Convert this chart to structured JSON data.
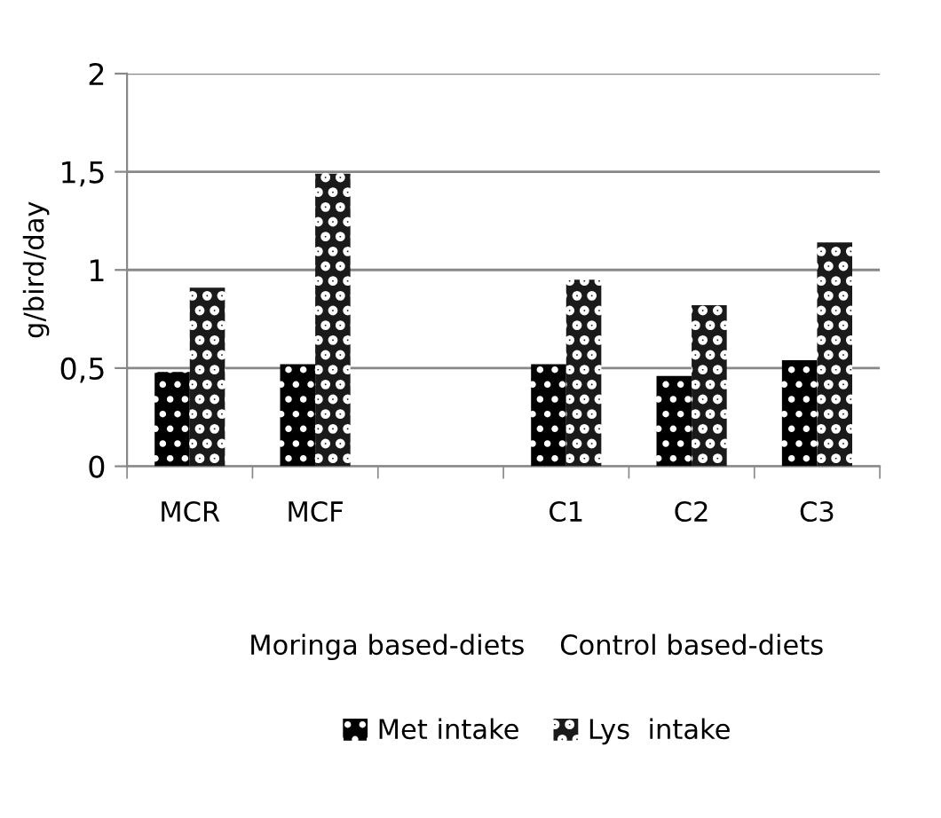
{
  "chart_data": {
    "type": "bar",
    "ylabel": "g/bird/day",
    "xlabel": "Moringa based-diets    Control based-diets",
    "categories": [
      "MCR",
      "MCF",
      null,
      "C1",
      "C2",
      "C3"
    ],
    "series": [
      {
        "name": "Met intake",
        "color": "#000000",
        "values": [
          0.48,
          0.52,
          null,
          0.52,
          0.46,
          0.54
        ]
      },
      {
        "name": "Lys  intake",
        "color": "#1a1a1a",
        "values": [
          0.91,
          1.49,
          null,
          0.95,
          0.82,
          1.14
        ]
      }
    ],
    "ylim": [
      0,
      2
    ],
    "yticks": [
      0,
      {
        "value": 0.5,
        "label": "0,5"
      },
      1,
      {
        "value": 1.5,
        "label": "1,5"
      },
      2
    ],
    "grid": "y",
    "legend": "bottom"
  }
}
